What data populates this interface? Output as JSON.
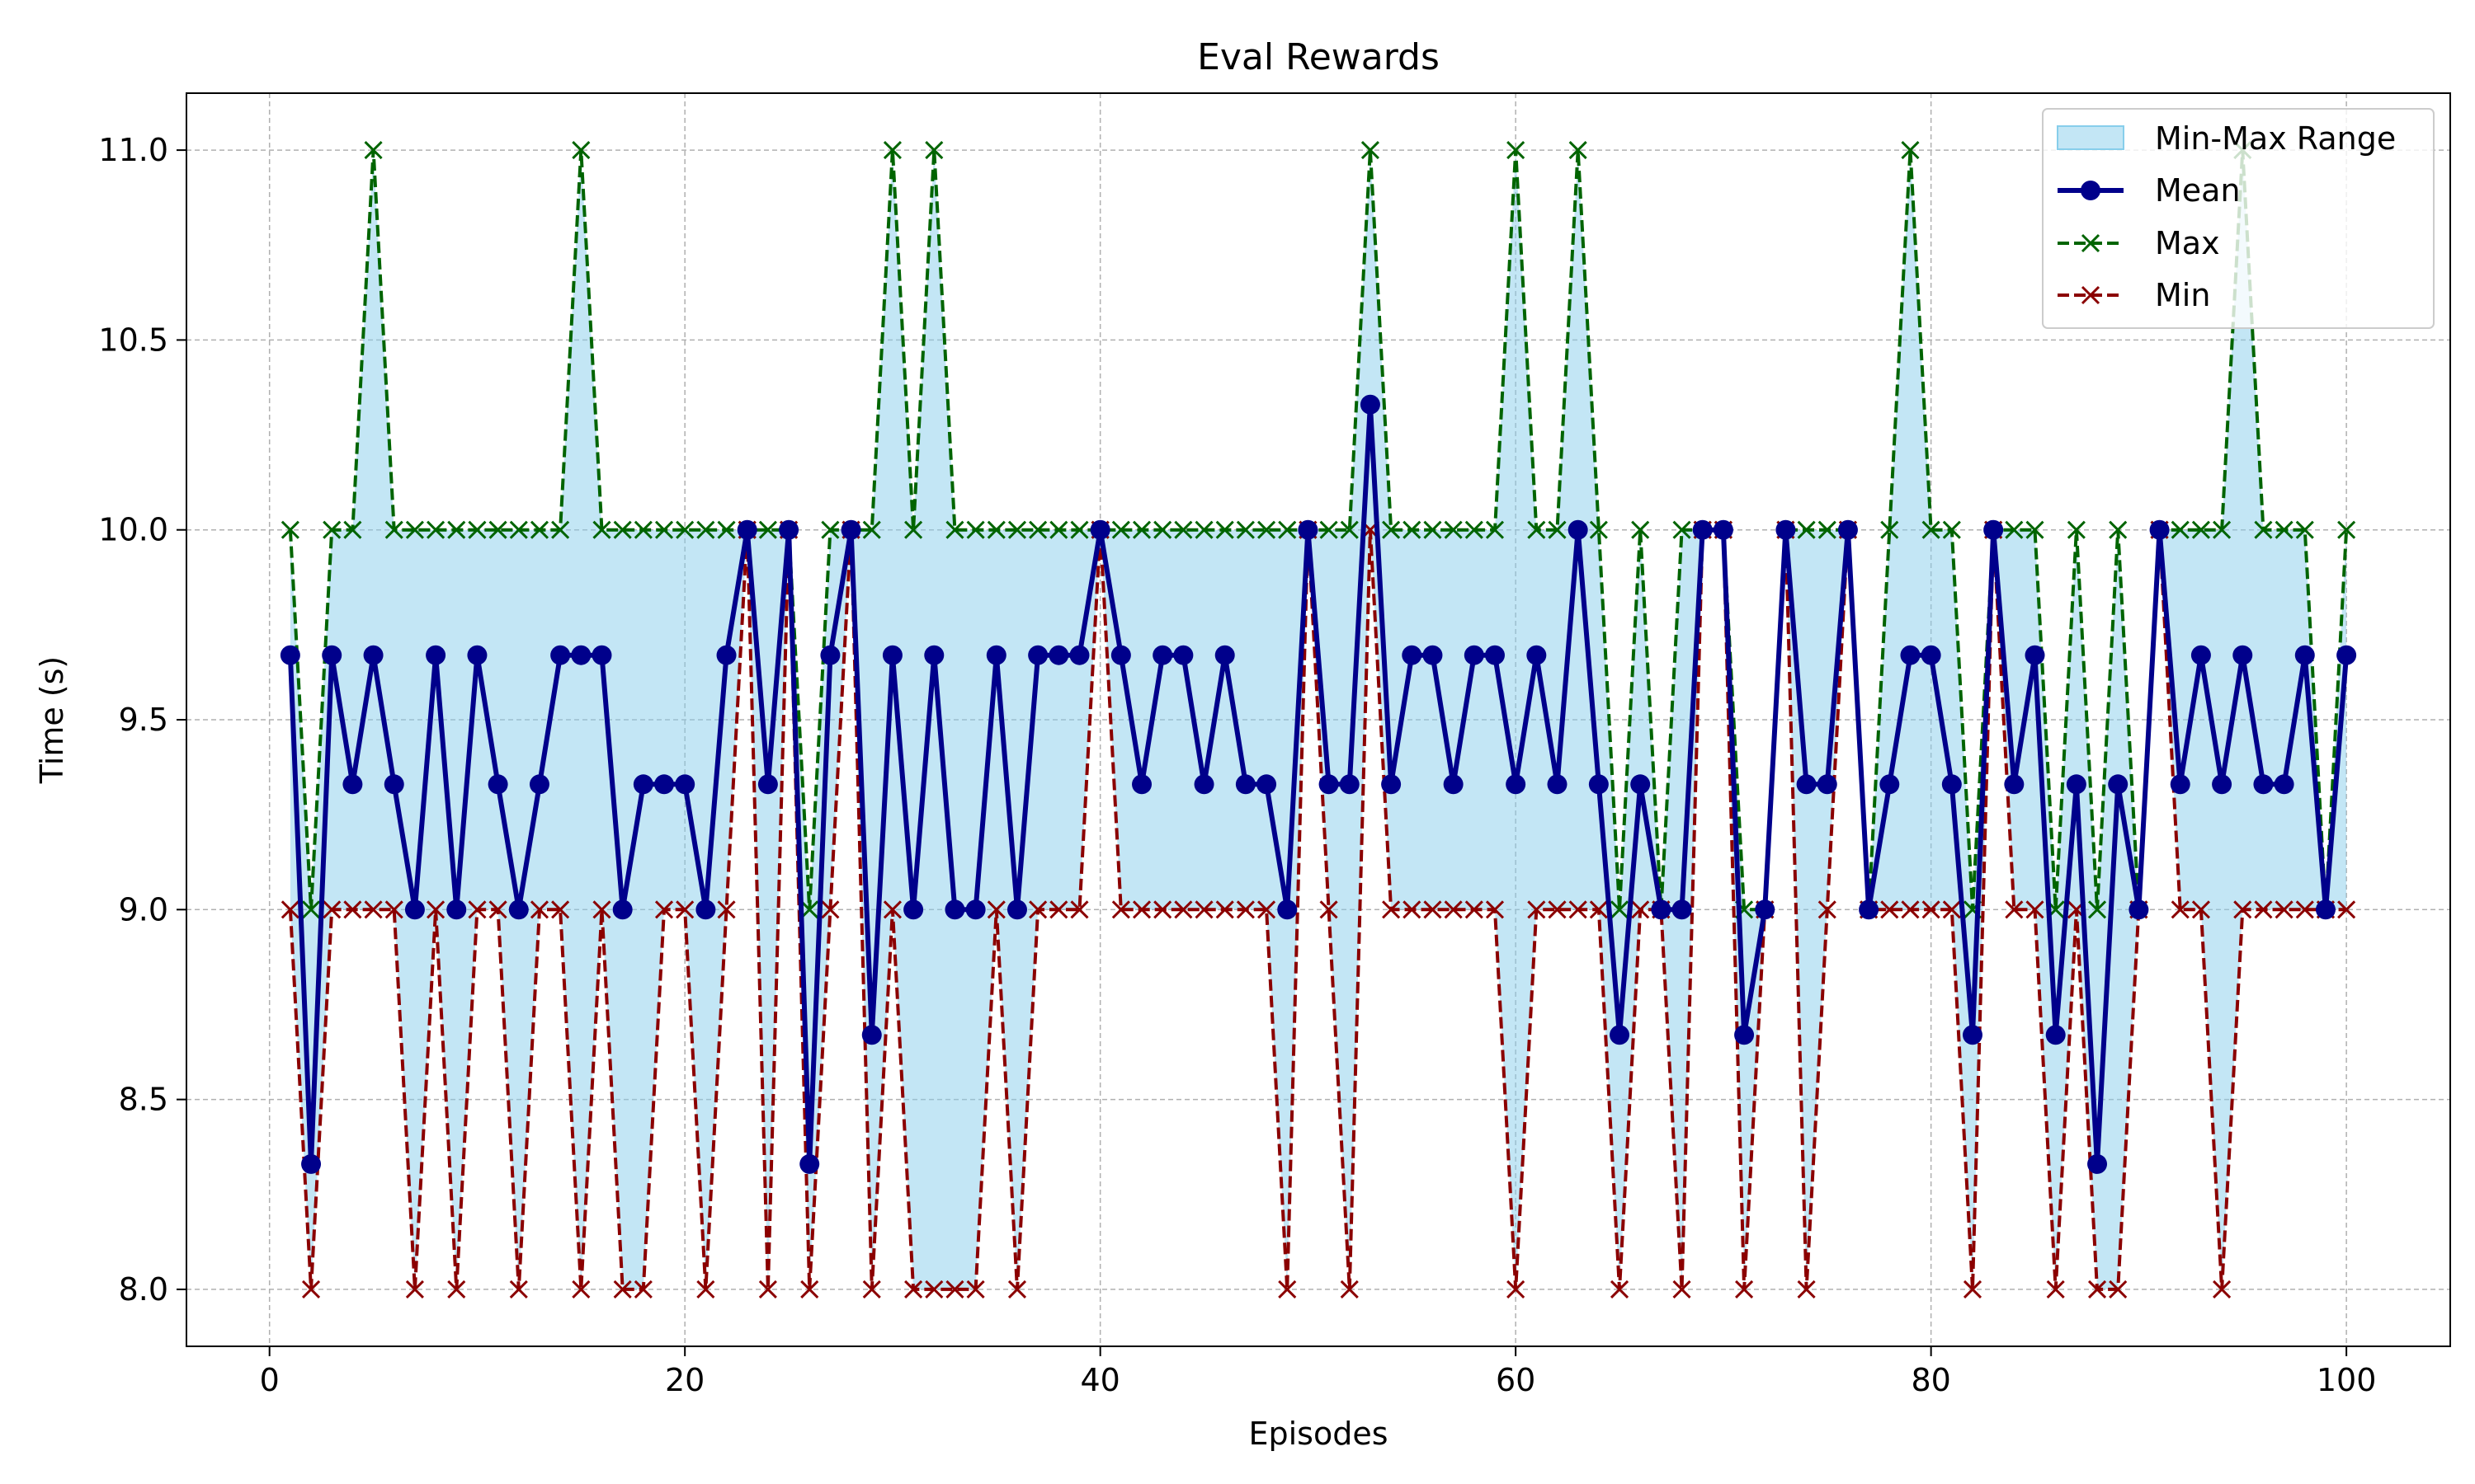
{
  "chart_data": {
    "type": "line",
    "title": "Eval Rewards",
    "xlabel": "Episodes",
    "ylabel": "Time (s)",
    "xlim": [
      -4,
      105
    ],
    "ylim": [
      7.85,
      11.15
    ],
    "x_ticks": [
      0,
      20,
      40,
      60,
      80,
      100
    ],
    "x_tick_labels": [
      "0",
      "20",
      "40",
      "60",
      "80",
      "100"
    ],
    "y_ticks": [
      8.0,
      8.5,
      9.0,
      9.5,
      10.0,
      10.5,
      11.0
    ],
    "y_tick_labels": [
      "8.0",
      "8.5",
      "9.0",
      "9.5",
      "10.0",
      "10.5",
      "11.0"
    ],
    "grid": true,
    "legend_position": "top-right",
    "legend": [
      "Min-Max Range",
      "Mean",
      "Max",
      "Min"
    ],
    "x": [
      1,
      2,
      3,
      4,
      5,
      6,
      7,
      8,
      9,
      10,
      11,
      12,
      13,
      14,
      15,
      16,
      17,
      18,
      19,
      20,
      21,
      22,
      23,
      24,
      25,
      26,
      27,
      28,
      29,
      30,
      31,
      32,
      33,
      34,
      35,
      36,
      37,
      38,
      39,
      40,
      41,
      42,
      43,
      44,
      45,
      46,
      47,
      48,
      49,
      50,
      51,
      52,
      53,
      54,
      55,
      56,
      57,
      58,
      59,
      60,
      61,
      62,
      63,
      64,
      65,
      66,
      67,
      68,
      69,
      70,
      71,
      72,
      73,
      74,
      75,
      76,
      77,
      78,
      79,
      80,
      81,
      82,
      83,
      84,
      85,
      86,
      87,
      88,
      89,
      90,
      91,
      92,
      93,
      94,
      95,
      96,
      97,
      98,
      99,
      100
    ],
    "series": [
      {
        "name": "Mean",
        "values": [
          9.67,
          8.33,
          9.67,
          9.33,
          9.67,
          9.33,
          9.0,
          9.67,
          9.0,
          9.67,
          9.33,
          9.0,
          9.33,
          9.67,
          9.67,
          9.67,
          9.0,
          9.33,
          9.33,
          9.33,
          9.0,
          9.67,
          10.0,
          9.33,
          10.0,
          8.33,
          9.67,
          10.0,
          8.67,
          9.67,
          9.0,
          9.67,
          9.0,
          9.0,
          9.67,
          9.0,
          9.67,
          9.67,
          9.67,
          10.0,
          9.67,
          9.33,
          9.67,
          9.67,
          9.33,
          9.67,
          9.33,
          9.33,
          9.0,
          10.0,
          9.33,
          9.33,
          10.33,
          9.33,
          9.67,
          9.67,
          9.33,
          9.67,
          9.67,
          9.33,
          9.67,
          9.33,
          10.0,
          9.33,
          8.67,
          9.33,
          9.0,
          9.0,
          10.0,
          10.0,
          8.67,
          9.0,
          10.0,
          9.33,
          9.33,
          10.0,
          9.0,
          9.33,
          9.67,
          9.67,
          9.33,
          8.67,
          10.0,
          9.33,
          9.67,
          8.67,
          9.33,
          8.33,
          9.33,
          9.0,
          10.0,
          9.33,
          9.67,
          9.33,
          9.67,
          9.33,
          9.33,
          9.67,
          9.0,
          9.67
        ]
      },
      {
        "name": "Max",
        "values": [
          10,
          9,
          10,
          10,
          11,
          10,
          10,
          10,
          10,
          10,
          10,
          10,
          10,
          10,
          11,
          10,
          10,
          10,
          10,
          10,
          10,
          10,
          10,
          10,
          10,
          9,
          10,
          10,
          10,
          11,
          10,
          11,
          10,
          10,
          10,
          10,
          10,
          10,
          10,
          10,
          10,
          10,
          10,
          10,
          10,
          10,
          10,
          10,
          10,
          10,
          10,
          10,
          11,
          10,
          10,
          10,
          10,
          10,
          10,
          11,
          10,
          10,
          11,
          10,
          9,
          10,
          9,
          10,
          10,
          10,
          9,
          9,
          10,
          10,
          10,
          10,
          9,
          10,
          11,
          10,
          10,
          9,
          10,
          10,
          10,
          9,
          10,
          9,
          10,
          9,
          10,
          10,
          10,
          10,
          11,
          10,
          10,
          10,
          9,
          10
        ]
      },
      {
        "name": "Min",
        "values": [
          9,
          8,
          9,
          9,
          9,
          9,
          8,
          9,
          8,
          9,
          9,
          8,
          9,
          9,
          8,
          9,
          8,
          8,
          9,
          9,
          8,
          9,
          10,
          8,
          10,
          8,
          9,
          10,
          8,
          9,
          8,
          8,
          8,
          8,
          9,
          8,
          9,
          9,
          9,
          10,
          9,
          9,
          9,
          9,
          9,
          9,
          9,
          9,
          8,
          10,
          9,
          8,
          10,
          9,
          9,
          9,
          9,
          9,
          9,
          8,
          9,
          9,
          9,
          9,
          8,
          9,
          9,
          8,
          10,
          10,
          8,
          9,
          10,
          8,
          9,
          10,
          9,
          9,
          9,
          9,
          9,
          8,
          10,
          9,
          9,
          8,
          9,
          8,
          8,
          9,
          10,
          9,
          9,
          8,
          9,
          9,
          9,
          9,
          9,
          9
        ]
      }
    ],
    "colors": {
      "fill": "#87ceeb",
      "mean": "#00008b",
      "max": "#006400",
      "min": "#8b0000",
      "grid": "#b0b0b0",
      "legend_border": "#cccccc"
    }
  }
}
